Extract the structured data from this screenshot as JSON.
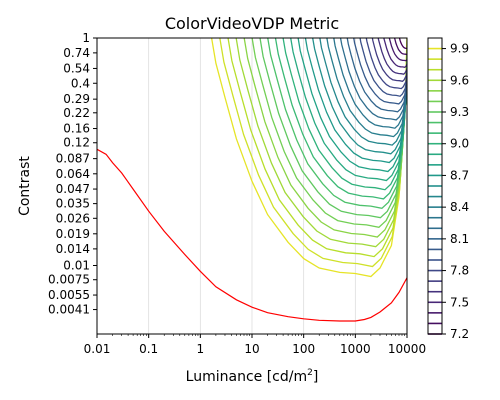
{
  "chart_data": {
    "type": "contour",
    "title": "ColorVideoVDP Metric",
    "xlabel": "Luminance [cd/m",
    "xlabel_sup": "2",
    "xlabel_end": "]",
    "ylabel": "Contrast",
    "x_scale": "log",
    "y_scale": "log",
    "xlim": [
      0.01,
      10000
    ],
    "ylim": [
      0.0025,
      1
    ],
    "x_ticks": [
      {
        "value": 0.01,
        "label": "0.01"
      },
      {
        "value": 0.1,
        "label": "0.1"
      },
      {
        "value": 1,
        "label": "1"
      },
      {
        "value": 10,
        "label": "10"
      },
      {
        "value": 100,
        "label": "100"
      },
      {
        "value": 1000,
        "label": "1000"
      },
      {
        "value": 10000,
        "label": "10000"
      }
    ],
    "y_ticks": [
      {
        "value": 1,
        "label": "1"
      },
      {
        "value": 0.74,
        "label": "0.74"
      },
      {
        "value": 0.54,
        "label": "0.54"
      },
      {
        "value": 0.4,
        "label": "0.4"
      },
      {
        "value": 0.29,
        "label": "0.29"
      },
      {
        "value": 0.22,
        "label": "0.22"
      },
      {
        "value": 0.16,
        "label": "0.16"
      },
      {
        "value": 0.12,
        "label": "0.12"
      },
      {
        "value": 0.087,
        "label": "0.087"
      },
      {
        "value": 0.064,
        "label": "0.064"
      },
      {
        "value": 0.047,
        "label": "0.047"
      },
      {
        "value": 0.035,
        "label": "0.035"
      },
      {
        "value": 0.026,
        "label": "0.026"
      },
      {
        "value": 0.019,
        "label": "0.019"
      },
      {
        "value": 0.014,
        "label": "0.014"
      },
      {
        "value": 0.01,
        "label": "0.01"
      },
      {
        "value": 0.0075,
        "label": "0.0075"
      },
      {
        "value": 0.0055,
        "label": "0.0055"
      },
      {
        "value": 0.0041,
        "label": "0.0041"
      }
    ],
    "grid": "vertical",
    "colormap": "viridis",
    "contour_levels": [
      7.2,
      7.3,
      7.4,
      7.5,
      7.6,
      7.7,
      7.8,
      7.9,
      8.0,
      8.1,
      8.2,
      8.3,
      8.4,
      8.5,
      8.6,
      8.7,
      8.8,
      8.9,
      9.0,
      9.1,
      9.2,
      9.3,
      9.4,
      9.5,
      9.6,
      9.7,
      9.8,
      9.9
    ],
    "colorbar": {
      "min": 7.2,
      "max": 10.0,
      "ticks": [
        {
          "value": 7.2,
          "label": "7.2"
        },
        {
          "value": 7.5,
          "label": "7.5"
        },
        {
          "value": 7.8,
          "label": "7.8"
        },
        {
          "value": 8.1,
          "label": "8.1"
        },
        {
          "value": 8.4,
          "label": "8.4"
        },
        {
          "value": 8.7,
          "label": "8.7"
        },
        {
          "value": 9.0,
          "label": "9.0"
        },
        {
          "value": 9.3,
          "label": "9.3"
        },
        {
          "value": 9.6,
          "label": "9.6"
        },
        {
          "value": 9.9,
          "label": "9.9"
        }
      ]
    },
    "threshold_curve": {
      "color": "#ff0000",
      "points": [
        [
          0.01,
          0.105
        ],
        [
          0.015,
          0.095
        ],
        [
          0.02,
          0.08
        ],
        [
          0.03,
          0.065
        ],
        [
          0.05,
          0.047
        ],
        [
          0.1,
          0.03
        ],
        [
          0.2,
          0.02
        ],
        [
          0.5,
          0.0125
        ],
        [
          1,
          0.0089
        ],
        [
          2,
          0.0065
        ],
        [
          5,
          0.005
        ],
        [
          10,
          0.0043
        ],
        [
          20,
          0.00385
        ],
        [
          50,
          0.00355
        ],
        [
          100,
          0.0034
        ],
        [
          200,
          0.0033
        ],
        [
          500,
          0.00325
        ],
        [
          1000,
          0.00325
        ],
        [
          1500,
          0.00335
        ],
        [
          2000,
          0.0035
        ],
        [
          3000,
          0.0039
        ],
        [
          5000,
          0.0047
        ],
        [
          7000,
          0.0058
        ],
        [
          10000,
          0.0078
        ]
      ]
    },
    "contour_outer_edge": {
      "points": [
        [
          1.65,
          1.0
        ],
        [
          2,
          0.6
        ],
        [
          3,
          0.3
        ],
        [
          5,
          0.13
        ],
        [
          10,
          0.055
        ],
        [
          20,
          0.028
        ],
        [
          50,
          0.016
        ],
        [
          100,
          0.0115
        ],
        [
          200,
          0.0095
        ],
        [
          500,
          0.0087
        ],
        [
          1000,
          0.0085
        ],
        [
          2000,
          0.008
        ],
        [
          3000,
          0.0095
        ],
        [
          5000,
          0.015
        ],
        [
          7000,
          0.04
        ],
        [
          9000,
          0.2
        ],
        [
          10000,
          1.0
        ]
      ]
    }
  }
}
